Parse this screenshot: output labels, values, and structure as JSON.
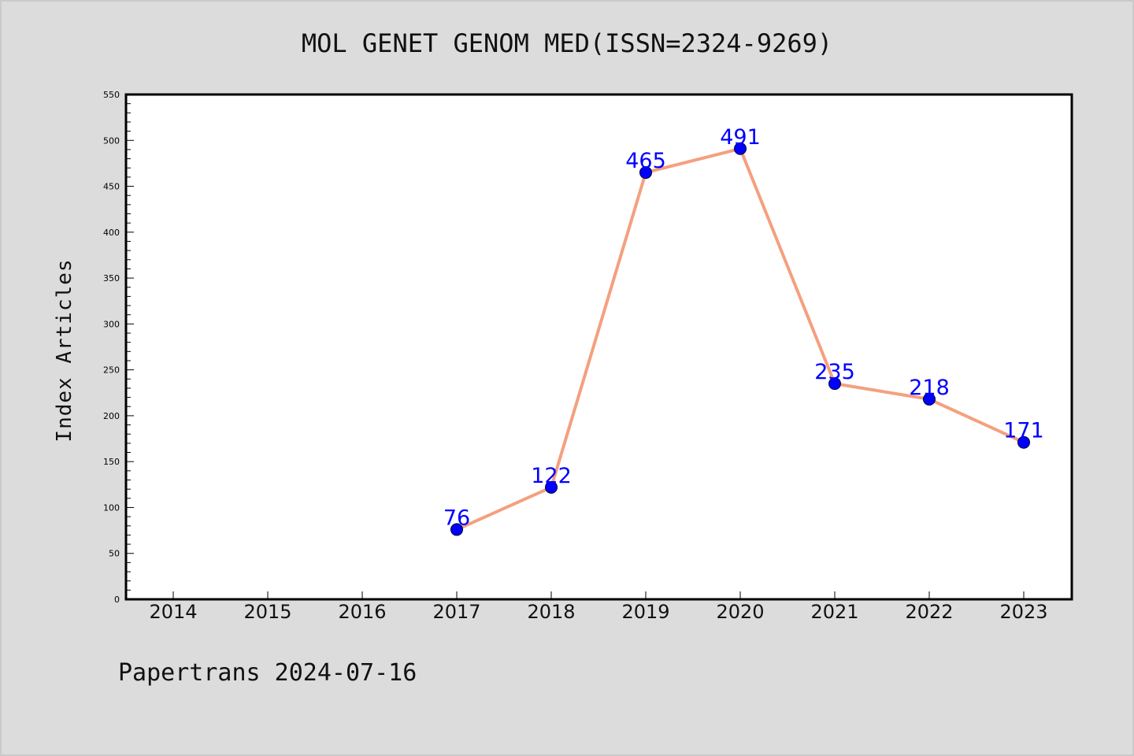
{
  "chart_data": {
    "type": "line",
    "title": "MOL GENET GENOM MED(ISSN=2324-9269)",
    "xlabel": "",
    "ylabel": "Index Articles",
    "categories": [
      "2014",
      "2015",
      "2016",
      "2017",
      "2018",
      "2019",
      "2020",
      "2021",
      "2022",
      "2023"
    ],
    "series": [
      {
        "points": [
          {
            "x": "2017",
            "y": 76
          },
          {
            "x": "2018",
            "y": 122
          },
          {
            "x": "2019",
            "y": 465
          },
          {
            "x": "2020",
            "y": 491
          },
          {
            "x": "2021",
            "y": 235
          },
          {
            "x": "2022",
            "y": 218
          },
          {
            "x": "2023",
            "y": 171
          }
        ]
      }
    ],
    "ylim": [
      0,
      550
    ],
    "yticks": [
      "0",
      "50",
      "100",
      "150",
      "200",
      "250",
      "300",
      "350",
      "400",
      "450",
      "500",
      "550"
    ],
    "grid": false,
    "line_color": "#f4a07f",
    "marker_color": "#0000ff",
    "label_color": "#0000ff"
  },
  "footer": {
    "text": "Papertrans 2024-07-16"
  }
}
